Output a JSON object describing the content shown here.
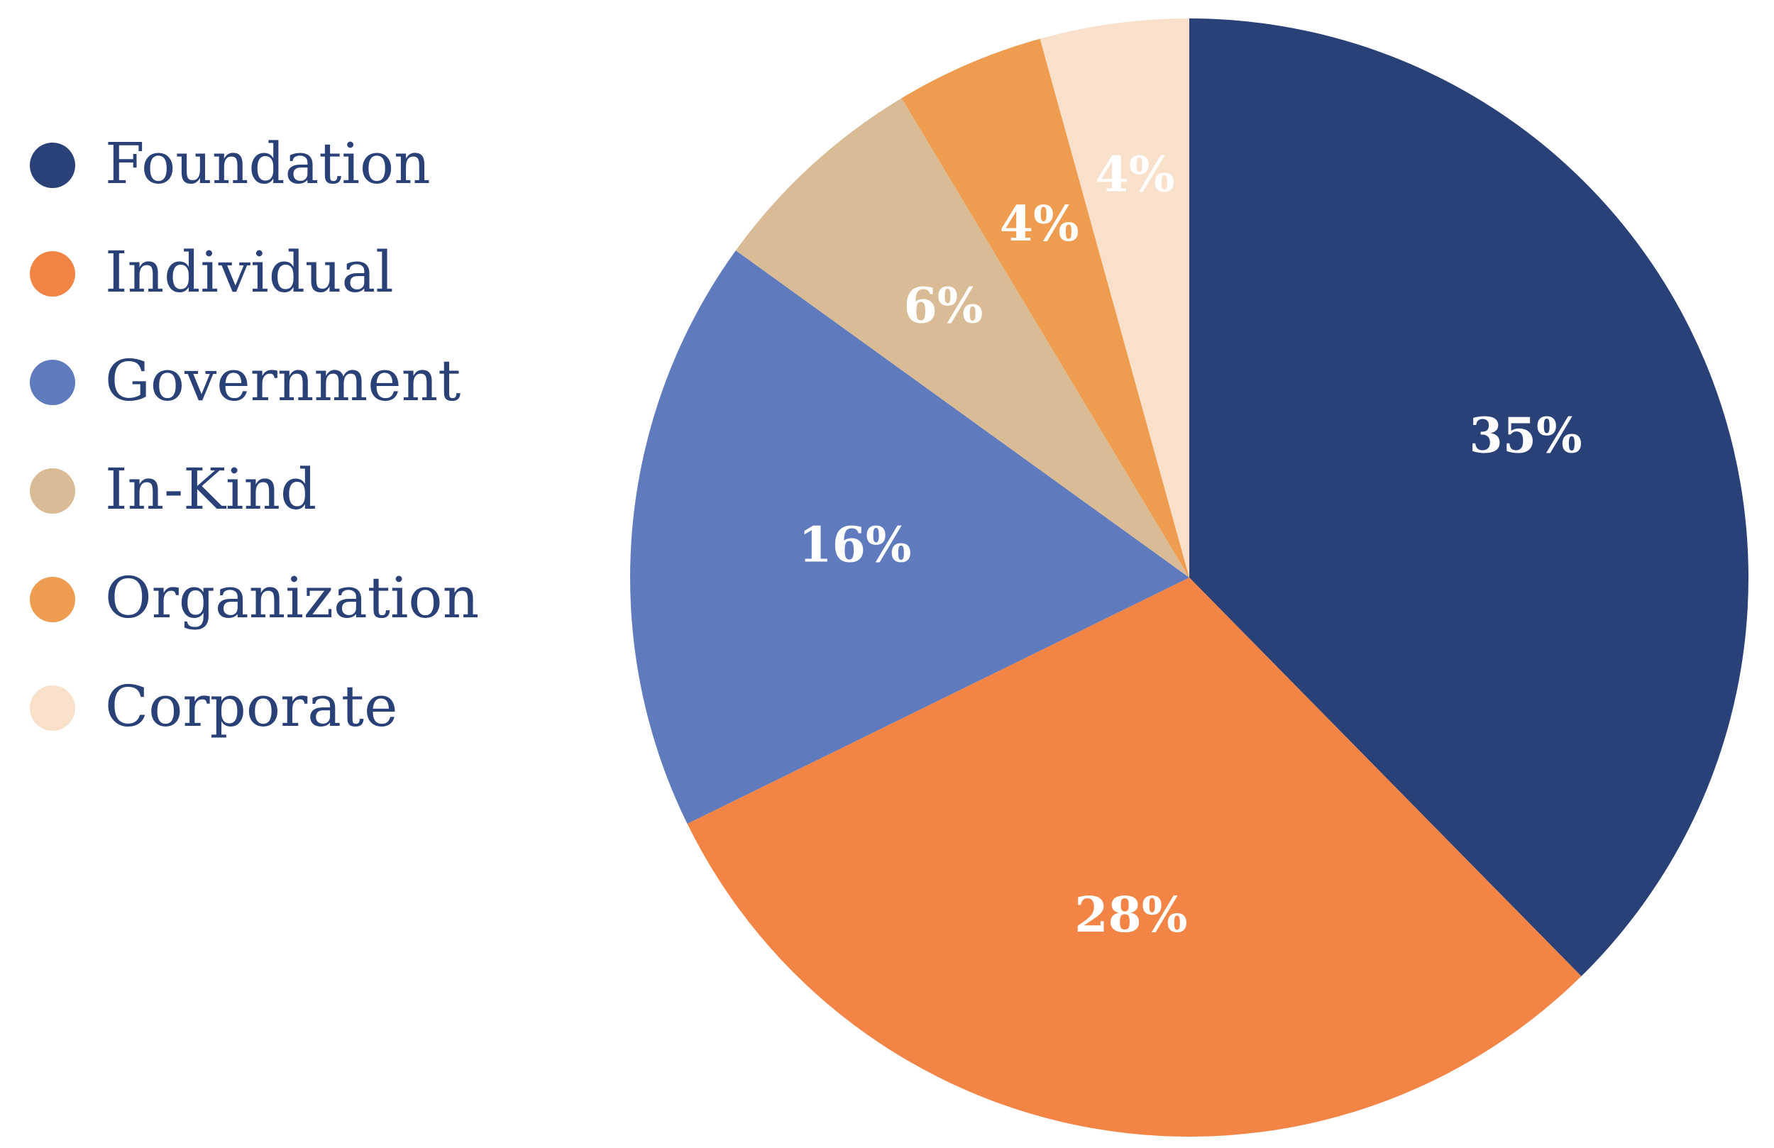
{
  "chart_data": {
    "type": "pie",
    "title": "",
    "legend_position": "left",
    "start_angle_deg": 90,
    "direction": "clockwise",
    "slices": [
      {
        "name": "Foundation",
        "value": 35,
        "label": "35%",
        "color": "#2a4177",
        "label_color": "#ffffff"
      },
      {
        "name": "Individual",
        "value": 28,
        "label": "28%",
        "color": "#f28446",
        "label_color": "#ffffff"
      },
      {
        "name": "Government",
        "value": 16,
        "label": "16%",
        "color": "#5f7bbd",
        "label_color": "#ffffff"
      },
      {
        "name": "In-Kind",
        "value": 6,
        "label": "6%",
        "color": "#d9bb96",
        "label_color": "#ffffff"
      },
      {
        "name": "Organization",
        "value": 4,
        "label": "4%",
        "color": "#ee9d50",
        "label_color": "#ffffff"
      },
      {
        "name": "Corporate",
        "value": 4,
        "label": "4%",
        "color": "#f9e0cb",
        "label_color": "#ffffff"
      }
    ],
    "legend_text_color": "#2a4177"
  }
}
